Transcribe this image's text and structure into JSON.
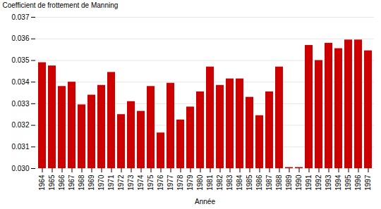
{
  "chart_data": {
    "type": "bar",
    "categories": [
      1964,
      1965,
      1966,
      1967,
      1968,
      1969,
      1970,
      1971,
      1972,
      1973,
      1974,
      1975,
      1976,
      1977,
      1978,
      1979,
      1980,
      1981,
      1982,
      1983,
      1984,
      1985,
      1986,
      1987,
      1988,
      1989,
      1990,
      1991,
      1992,
      1993,
      1994,
      1995,
      1996,
      1997
    ],
    "values": [
      0.0349,
      0.03475,
      0.0338,
      0.034,
      0.03295,
      0.0334,
      0.03385,
      0.03445,
      0.0325,
      0.0331,
      0.03265,
      0.0338,
      0.03165,
      0.03395,
      0.03225,
      0.03285,
      0.03355,
      0.0347,
      0.03385,
      0.03415,
      0.03415,
      0.0333,
      0.03245,
      0.03355,
      0.0347,
      0.03005,
      0.03005,
      0.0357,
      0.035,
      0.0358,
      0.03555,
      0.03595,
      0.03595,
      0.03545
    ],
    "color": "#CC0000",
    "xlabel": "Année",
    "ylabel": "Coefficient de frottement de Manning",
    "ylim": [
      0.03,
      0.037
    ],
    "yticks": [
      {
        "value": 0.03,
        "label": "0.030"
      },
      0.031,
      0.032,
      0.033,
      0.034,
      0.035,
      0.036,
      0.037
    ],
    "grid": true
  }
}
